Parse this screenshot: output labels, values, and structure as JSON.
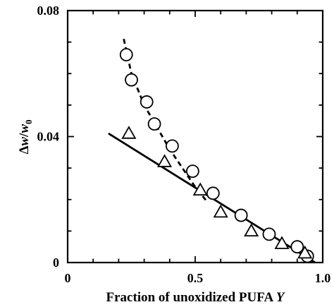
{
  "chart_data": {
    "type": "scatter",
    "xlabel": "Fraction of unoxidized PUFA",
    "xlabel_symbol": "Y",
    "ylabel_prefix": "Δ",
    "ylabel_var": "w",
    "ylabel_sep": "/",
    "ylabel_denom_var": "w",
    "ylabel_denom_sub": "0",
    "xlim": [
      0,
      1.0
    ],
    "ylim": [
      0,
      0.08
    ],
    "x_ticks": [
      0,
      0.5,
      1.0
    ],
    "x_tick_labels": [
      "0",
      "0.5",
      "1.0"
    ],
    "y_ticks": [
      0,
      0.04,
      0.08
    ],
    "y_tick_labels": [
      "0",
      "0.04",
      "0.08"
    ],
    "grid": false,
    "series": [
      {
        "marker": "circle",
        "x": [
          0.23,
          0.25,
          0.31,
          0.34,
          0.41,
          0.49,
          0.57,
          0.68,
          0.79,
          0.9,
          0.94
        ],
        "y": [
          0.066,
          0.058,
          0.051,
          0.044,
          0.037,
          0.029,
          0.022,
          0.015,
          0.009,
          0.005,
          0.002
        ]
      },
      {
        "marker": "triangle",
        "x": [
          0.24,
          0.38,
          0.52,
          0.6,
          0.72,
          0.84,
          0.93
        ],
        "y": [
          0.041,
          0.032,
          0.023,
          0.016,
          0.01,
          0.006,
          0.003
        ]
      }
    ],
    "lines": [
      {
        "style": "dashed",
        "x": [
          0.22,
          0.25,
          0.3,
          0.35,
          0.4,
          0.45,
          0.5,
          0.55
        ],
        "y": [
          0.071,
          0.06,
          0.05,
          0.043,
          0.036,
          0.03,
          0.024,
          0.019
        ]
      },
      {
        "style": "solid",
        "x": [
          0.16,
          0.97
        ],
        "y": [
          0.041,
          0.0
        ]
      }
    ]
  }
}
